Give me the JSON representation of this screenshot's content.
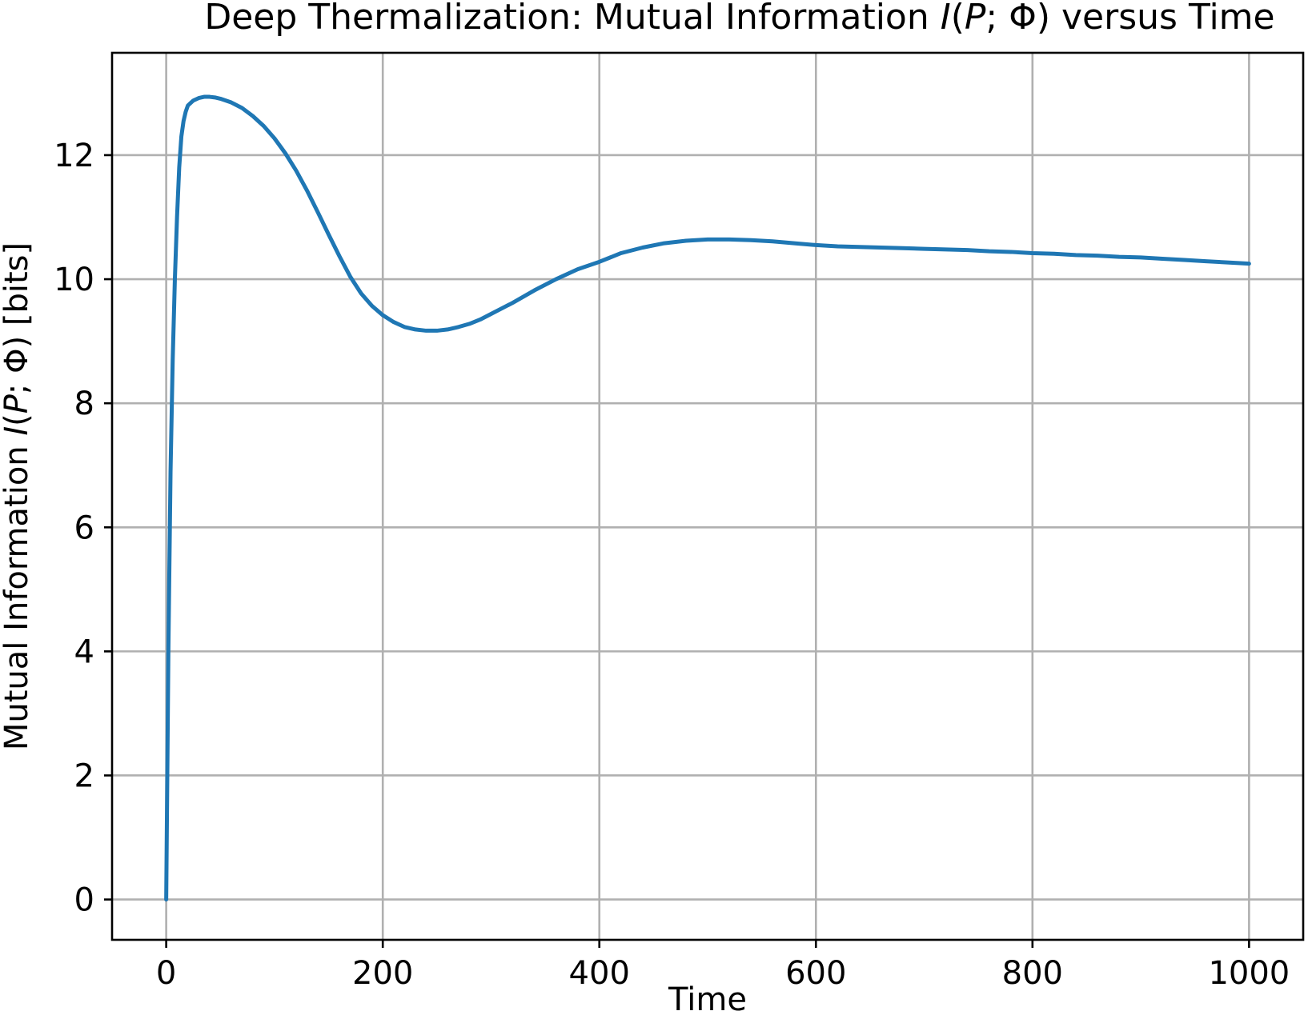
{
  "chart_data": {
    "type": "line",
    "title_parts": [
      {
        "text": "Deep Thermalization: Mutual Information ",
        "italic": false
      },
      {
        "text": "I",
        "italic": true
      },
      {
        "text": "(",
        "italic": false
      },
      {
        "text": "P",
        "italic": true
      },
      {
        "text": "; Φ) versus Time",
        "italic": false
      }
    ],
    "xlabel": "Time",
    "ylabel_parts": [
      {
        "text": "Mutual Information ",
        "italic": false
      },
      {
        "text": "I",
        "italic": true
      },
      {
        "text": "(",
        "italic": false
      },
      {
        "text": "P",
        "italic": true
      },
      {
        "text": "; Φ) [bits]",
        "italic": false
      }
    ],
    "xlim": [
      -50,
      1050
    ],
    "ylim": [
      -0.65,
      13.65
    ],
    "xticks": [
      0,
      200,
      400,
      600,
      800,
      1000
    ],
    "xtick_labels": [
      "0",
      "200",
      "400",
      "600",
      "800",
      "1000"
    ],
    "yticks": [
      0,
      2,
      4,
      6,
      8,
      10,
      12
    ],
    "ytick_labels": [
      "0",
      "2",
      "4",
      "6",
      "8",
      "10",
      "12"
    ],
    "grid": true,
    "legend": false,
    "series": [
      {
        "color": "#1f77b4",
        "x": [
          0,
          2,
          4,
          6,
          8,
          10,
          12,
          14,
          16,
          18,
          20,
          25,
          30,
          35,
          40,
          45,
          50,
          60,
          70,
          80,
          90,
          100,
          110,
          120,
          130,
          140,
          150,
          160,
          170,
          180,
          190,
          200,
          210,
          220,
          230,
          240,
          250,
          260,
          270,
          280,
          290,
          300,
          320,
          340,
          360,
          380,
          400,
          420,
          440,
          460,
          480,
          500,
          520,
          540,
          560,
          580,
          600,
          620,
          640,
          660,
          680,
          700,
          720,
          740,
          760,
          780,
          800,
          820,
          840,
          860,
          880,
          900,
          920,
          940,
          960,
          980,
          1000
        ],
        "y": [
          0.0,
          4.0,
          6.9,
          8.7,
          10.0,
          11.0,
          11.8,
          12.3,
          12.55,
          12.7,
          12.8,
          12.88,
          12.92,
          12.94,
          12.94,
          12.93,
          12.91,
          12.85,
          12.76,
          12.63,
          12.47,
          12.27,
          12.03,
          11.75,
          11.43,
          11.08,
          10.72,
          10.37,
          10.04,
          9.77,
          9.57,
          9.42,
          9.31,
          9.23,
          9.19,
          9.17,
          9.17,
          9.19,
          9.23,
          9.28,
          9.35,
          9.44,
          9.62,
          9.82,
          10.0,
          10.16,
          10.28,
          10.42,
          10.51,
          10.58,
          10.62,
          10.64,
          10.64,
          10.63,
          10.61,
          10.58,
          10.55,
          10.53,
          10.52,
          10.51,
          10.5,
          10.49,
          10.48,
          10.47,
          10.45,
          10.44,
          10.42,
          10.41,
          10.39,
          10.38,
          10.36,
          10.35,
          10.33,
          10.31,
          10.29,
          10.27,
          10.25
        ]
      }
    ]
  }
}
